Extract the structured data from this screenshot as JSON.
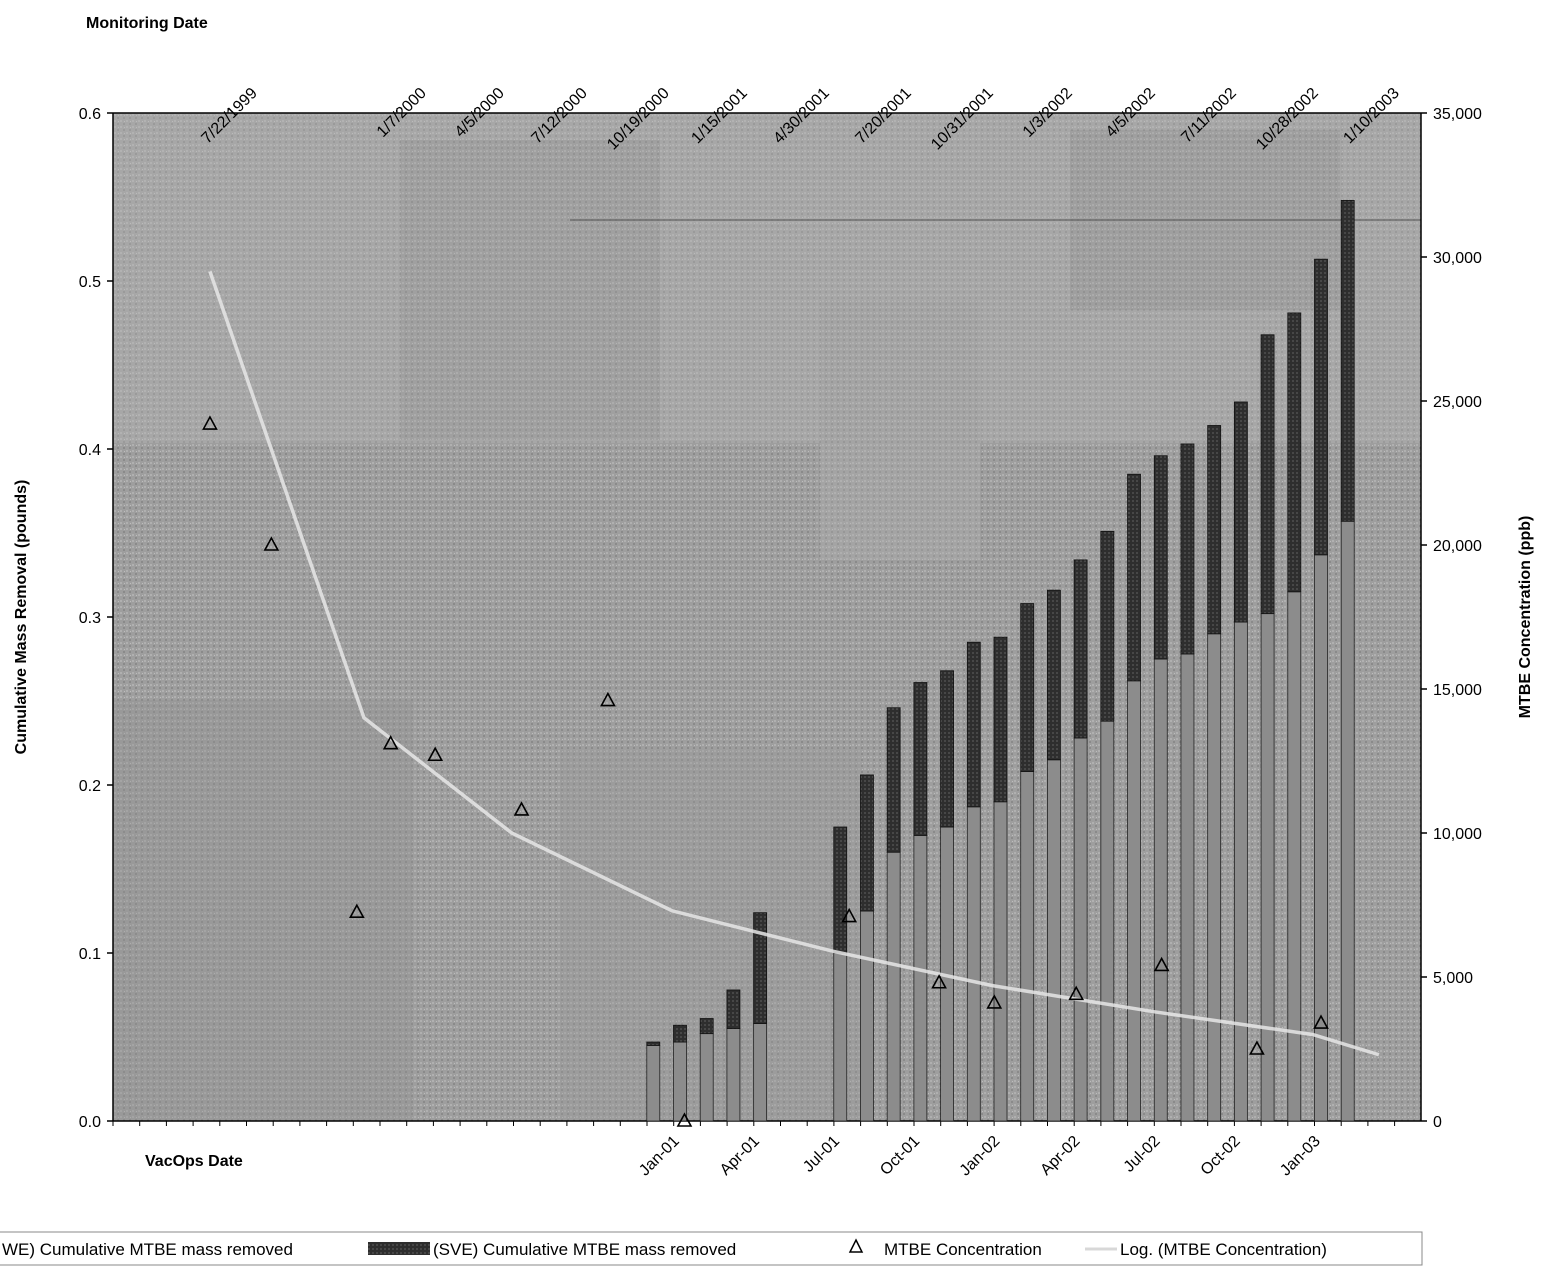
{
  "chart_data": {
    "type": "bar",
    "top_axis": {
      "label": "Monitoring Date",
      "tick_labels": [
        "7/22/1999",
        "1/7/2000",
        "4/5/2000",
        "7/12/2000",
        "10/19/2000",
        "1/15/2001",
        "4/30/2001",
        "7/20/2001",
        "10/31/2001",
        "1/3/2002",
        "4/5/2002",
        "7/11/2002",
        "10/28/2002",
        "1/10/2003"
      ]
    },
    "bottom_axis": {
      "label": "VacOps Date",
      "tick_labels": [
        "Jan-01",
        "Apr-01",
        "Jul-01",
        "Oct-01",
        "Jan-02",
        "Apr-02",
        "Jul-02",
        "Oct-02",
        "Jan-03"
      ]
    },
    "y_left": {
      "label": "Cumulative Mass Removal (pounds)",
      "range": [
        0,
        0.6
      ],
      "ticks": [
        "0.0",
        "0.1",
        "0.2",
        "0.3",
        "0.4",
        "0.5",
        "0.6"
      ]
    },
    "y_right": {
      "label": "MTBE Concentration (ppb)",
      "range": [
        0,
        35000
      ],
      "ticks": [
        "0",
        "5,000",
        "10,000",
        "15,000",
        "20,000",
        "25,000",
        "30,000",
        "35,000"
      ]
    },
    "bar_dates": [
      "2000-12",
      "2001-01",
      "2001-02",
      "2001-03",
      "2001-04",
      "2001-07",
      "2001-08",
      "2001-09",
      "2001-10",
      "2001-11",
      "2001-12",
      "2002-01",
      "2002-02",
      "2002-03",
      "2002-04",
      "2002-05",
      "2002-06",
      "2002-07",
      "2002-08",
      "2002-09",
      "2002-10",
      "2002-11",
      "2002-12",
      "2003-01",
      "2003-02"
    ],
    "series": [
      {
        "name": "(DPWE) Cumulative MTBE mass removed",
        "color": "#8c8c8c",
        "values": [
          0.045,
          0.047,
          0.052,
          0.055,
          0.058,
          0.1,
          0.125,
          0.16,
          0.17,
          0.175,
          0.187,
          0.19,
          0.208,
          0.215,
          0.228,
          0.238,
          0.262,
          0.275,
          0.278,
          0.29,
          0.297,
          0.302,
          0.315,
          0.337,
          0.357
        ]
      },
      {
        "name": "(SVE) Cumulative MTBE mass removed",
        "color": "#2a2a2a",
        "values": [
          0.002,
          0.01,
          0.009,
          0.023,
          0.066,
          0.075,
          0.081,
          0.086,
          0.091,
          0.093,
          0.098,
          0.098,
          0.1,
          0.101,
          0.106,
          0.113,
          0.123,
          0.121,
          0.125,
          0.124,
          0.131,
          0.166,
          0.166,
          0.176,
          0.191
        ]
      }
    ],
    "scatter": {
      "name": "MTBE Concentration",
      "marker": "open-triangle",
      "points": [
        {
          "date": "1999-07-22",
          "ppb": 24200
        },
        {
          "date": "1999-10-01",
          "ppb": 20000
        },
        {
          "date": "2000-01-07",
          "ppb": 7250
        },
        {
          "date": "2000-02-15",
          "ppb": 13100
        },
        {
          "date": "2000-04-05",
          "ppb": 12700
        },
        {
          "date": "2000-07-12",
          "ppb": 10800
        },
        {
          "date": "2000-10-19",
          "ppb": 14600
        },
        {
          "date": "2001-01-15",
          "ppb": 0
        },
        {
          "date": "2001-07-20",
          "ppb": 7100
        },
        {
          "date": "2001-10-31",
          "ppb": 4800
        },
        {
          "date": "2002-01-03",
          "ppb": 4100
        },
        {
          "date": "2002-04-05",
          "ppb": 4400
        },
        {
          "date": "2002-07-11",
          "ppb": 5400
        },
        {
          "date": "2002-10-28",
          "ppb": 2500
        },
        {
          "date": "2003-01-10",
          "ppb": 3400
        }
      ]
    },
    "trendline": {
      "name": "Log. (MTBE Concentration)",
      "type": "logarithmic",
      "points": [
        {
          "date": "1999-07-22",
          "ppb": 29500
        },
        {
          "date": "2000-01-15",
          "ppb": 14000
        },
        {
          "date": "2000-07-01",
          "ppb": 10000
        },
        {
          "date": "2001-01-01",
          "ppb": 7300
        },
        {
          "date": "2001-07-01",
          "ppb": 5900
        },
        {
          "date": "2002-01-01",
          "ppb": 4700
        },
        {
          "date": "2002-07-01",
          "ppb": 3800
        },
        {
          "date": "2003-01-01",
          "ppb": 3000
        },
        {
          "date": "2003-03-15",
          "ppb": 2300
        }
      ]
    },
    "legend": {
      "position": "bottom",
      "entries": [
        "WE) Cumulative MTBE mass removed",
        "(SVE) Cumulative MTBE mass removed",
        "MTBE Concentration",
        "Log. (MTBE Concentration)"
      ]
    },
    "grid": false
  }
}
